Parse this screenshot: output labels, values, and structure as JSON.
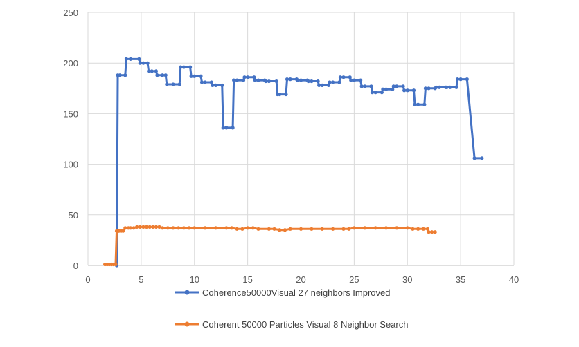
{
  "chart_data": {
    "type": "line",
    "title": "",
    "xlabel": "",
    "ylabel": "",
    "xlim": [
      0,
      40
    ],
    "ylim": [
      0,
      250
    ],
    "x_ticks": [
      0,
      5,
      10,
      15,
      20,
      25,
      30,
      35,
      40
    ],
    "y_ticks": [
      0,
      50,
      100,
      150,
      200,
      250
    ],
    "x_tick_labels": [
      "0",
      "5",
      "10",
      "15",
      "20",
      "25",
      "30",
      "35",
      "40"
    ],
    "y_tick_labels": [
      "0",
      "50",
      "100",
      "150",
      "200",
      "250"
    ],
    "grid": true,
    "legend_position": "bottom",
    "series": [
      {
        "name": "Coherence50000Visual 27 neighbors Improved",
        "color": "#4472C4",
        "x": [
          2.7,
          2.8,
          3.0,
          3.5,
          3.6,
          4.0,
          4.8,
          4.9,
          5.2,
          5.6,
          5.7,
          6.0,
          6.4,
          6.5,
          7.0,
          7.3,
          7.4,
          8.0,
          8.6,
          8.7,
          9.0,
          9.6,
          9.7,
          10.0,
          10.6,
          10.7,
          11.0,
          11.6,
          11.7,
          12.0,
          12.6,
          12.7,
          13.0,
          13.6,
          13.7,
          14.0,
          14.6,
          14.7,
          15.0,
          15.6,
          15.7,
          16.0,
          16.6,
          16.7,
          17.0,
          17.7,
          17.8,
          18.0,
          18.6,
          18.7,
          19.0,
          19.6,
          19.7,
          20.0,
          20.6,
          20.7,
          21.0,
          21.6,
          21.7,
          22.0,
          22.6,
          22.7,
          23.0,
          23.6,
          23.7,
          24.0,
          24.6,
          24.7,
          25.0,
          25.6,
          25.7,
          26.0,
          26.6,
          26.7,
          27.0,
          27.6,
          27.7,
          28.0,
          28.6,
          28.7,
          29.0,
          29.6,
          29.7,
          30.0,
          30.6,
          30.7,
          31.0,
          31.6,
          31.7,
          32.0,
          32.6,
          32.7,
          33.0,
          33.6,
          33.7,
          34.0,
          34.6,
          34.7,
          35.0,
          35.6,
          36.3,
          37.0
        ],
        "values": [
          0,
          188,
          188,
          188,
          204,
          204,
          204,
          200,
          200,
          200,
          192,
          192,
          192,
          188,
          188,
          188,
          179,
          179,
          179,
          196,
          196,
          196,
          187,
          187,
          187,
          181,
          181,
          181,
          178,
          178,
          178,
          136,
          136,
          136,
          183,
          183,
          183,
          186,
          186,
          186,
          183,
          183,
          183,
          182,
          182,
          182,
          169,
          169,
          169,
          184,
          184,
          184,
          183,
          183,
          183,
          182,
          182,
          182,
          178,
          178,
          178,
          181,
          181,
          181,
          186,
          186,
          186,
          183,
          183,
          183,
          177,
          177,
          177,
          171,
          171,
          171,
          174,
          174,
          174,
          177,
          177,
          177,
          173,
          173,
          173,
          159,
          159,
          159,
          175,
          175,
          175,
          176,
          176,
          176,
          176,
          176,
          176,
          184,
          184,
          184,
          106,
          106
        ]
      },
      {
        "name": "Coherent 50000 Particles Visual 8 Neighbor Search",
        "color": "#ED7D31",
        "x": [
          1.6,
          1.8,
          2.0,
          2.2,
          2.4,
          2.6,
          2.7,
          2.9,
          3.1,
          3.3,
          3.5,
          3.8,
          4.0,
          4.3,
          4.6,
          4.9,
          5.2,
          5.5,
          5.8,
          6.1,
          6.4,
          6.7,
          7.0,
          7.5,
          8.0,
          8.5,
          9.0,
          9.5,
          10.0,
          11.0,
          12.0,
          13.0,
          13.5,
          14.0,
          14.5,
          15.0,
          15.5,
          16.0,
          17.0,
          17.5,
          18.0,
          18.5,
          19.0,
          20.0,
          21.0,
          22.0,
          23.0,
          24.0,
          24.5,
          25.0,
          26.0,
          27.0,
          28.0,
          29.0,
          30.0,
          30.5,
          31.0,
          31.5,
          31.9,
          32.0,
          32.3,
          32.6
        ],
        "values": [
          1,
          1,
          1,
          1,
          1,
          1,
          34,
          34,
          34,
          34,
          37,
          37,
          37,
          37,
          38,
          38,
          38,
          38,
          38,
          38,
          38,
          38,
          37,
          37,
          37,
          37,
          37,
          37,
          37,
          37,
          37,
          37,
          37,
          36,
          36,
          37,
          37,
          36,
          36,
          36,
          35,
          35,
          36,
          36,
          36,
          36,
          36,
          36,
          36,
          37,
          37,
          37,
          37,
          37,
          37,
          36,
          36,
          36,
          36,
          33,
          33,
          33
        ]
      }
    ]
  }
}
